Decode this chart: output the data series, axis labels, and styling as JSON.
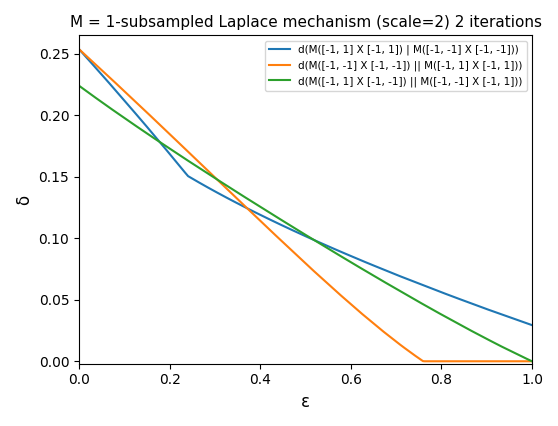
{
  "title": "M = 1-subsampled Laplace mechanism (scale=2) 2 iterations",
  "xlabel": "ε",
  "ylabel": "δ",
  "scale": 2,
  "xlim": [
    0.0,
    1.0
  ],
  "ylim": [
    -0.002,
    0.265
  ],
  "yticks": [
    0.0,
    0.05,
    0.1,
    0.15,
    0.2,
    0.25
  ],
  "legend_labels": [
    "d(M([-1, 1] X [-1, 1]) | M([-1, -1] X [-1, -1]))",
    "d(M([-1, -1] X [-1, -1]) || M([-1, 1] X [-1, 1]))",
    "d(M([-1, 1] X [-1, -1]) || M([-1, -1] X [-1, 1]))"
  ],
  "line_colors": [
    "#1f77b4",
    "#ff7f0e",
    "#2ca02c"
  ],
  "n_eps": 300,
  "grid_size": 600
}
